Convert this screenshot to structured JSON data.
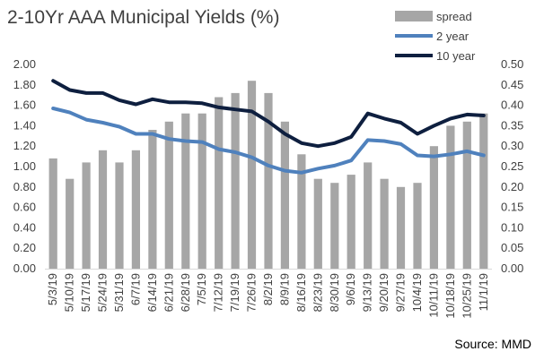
{
  "chart_data": {
    "type": "bar+line",
    "title": "2-10Yr AAA Municipal Yields (%)",
    "source": "Source: MMD",
    "categories": [
      "5/3/19",
      "5/10/19",
      "5/17/19",
      "5/24/19",
      "5/31/19",
      "6/7/19",
      "6/14/19",
      "6/21/19",
      "6/28/19",
      "7/5/19",
      "7/12/19",
      "7/19/19",
      "7/26/19",
      "8/2/19",
      "8/9/19",
      "8/16/19",
      "8/23/19",
      "8/30/19",
      "9/6/19",
      "9/13/19",
      "9/20/19",
      "9/27/19",
      "10/4/19",
      "10/11/19",
      "10/18/19",
      "10/25/19",
      "11/1/19"
    ],
    "series": [
      {
        "name": "spread",
        "axis": "right",
        "kind": "bar",
        "color": "#a6a6a6",
        "values": [
          0.27,
          0.22,
          0.26,
          0.29,
          0.26,
          0.29,
          0.34,
          0.36,
          0.38,
          0.38,
          0.42,
          0.43,
          0.46,
          0.43,
          0.36,
          0.28,
          0.22,
          0.21,
          0.23,
          0.26,
          0.22,
          0.2,
          0.21,
          0.3,
          0.35,
          0.36,
          0.38
        ]
      },
      {
        "name": "2 year",
        "axis": "left",
        "kind": "line",
        "color": "#4f81bd",
        "values": [
          1.57,
          1.53,
          1.46,
          1.43,
          1.39,
          1.32,
          1.32,
          1.27,
          1.25,
          1.24,
          1.17,
          1.14,
          1.09,
          1.01,
          0.96,
          0.94,
          0.98,
          1.01,
          1.06,
          1.26,
          1.25,
          1.22,
          1.11,
          1.1,
          1.12,
          1.15,
          1.11
        ]
      },
      {
        "name": "10 year",
        "axis": "left",
        "kind": "line",
        "color": "#0e1f3f",
        "values": [
          1.84,
          1.75,
          1.72,
          1.72,
          1.65,
          1.61,
          1.66,
          1.63,
          1.63,
          1.62,
          1.58,
          1.56,
          1.54,
          1.44,
          1.32,
          1.23,
          1.2,
          1.23,
          1.29,
          1.52,
          1.47,
          1.43,
          1.32,
          1.4,
          1.47,
          1.51,
          1.5
        ]
      }
    ],
    "y_left": {
      "min": 0,
      "max": 2,
      "step": 0.2,
      "ticks": [
        "0.00",
        "0.20",
        "0.40",
        "0.60",
        "0.80",
        "1.00",
        "1.20",
        "1.40",
        "1.60",
        "1.80",
        "2.00"
      ]
    },
    "y_right": {
      "min": 0,
      "max": 0.5,
      "step": 0.05,
      "ticks": [
        "0.00",
        "0.05",
        "0.10",
        "0.15",
        "0.20",
        "0.25",
        "0.30",
        "0.35",
        "0.40",
        "0.45",
        "0.50"
      ]
    },
    "grid": false,
    "legend_position": "top-right"
  }
}
